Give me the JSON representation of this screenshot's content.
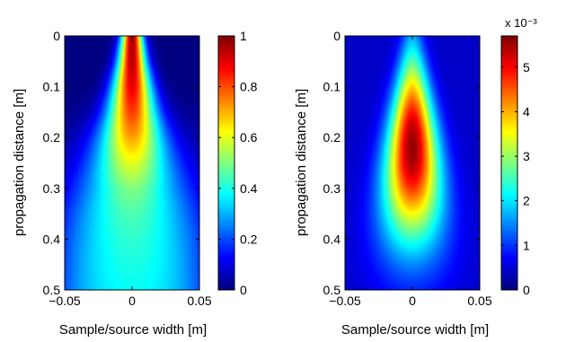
{
  "chart_data": [
    {
      "type": "heatmap",
      "title": "",
      "xlabel": "Sample/source width [m]",
      "ylabel": "propagation distance [m]",
      "xlim": [
        -0.05,
        0.05
      ],
      "ylim": [
        0,
        0.5
      ],
      "y_reversed": true,
      "xticks": [
        -0.05,
        0,
        0.05
      ],
      "xtick_labels": [
        "−0.05",
        "0",
        "0.05"
      ],
      "yticks": [
        0,
        0.1,
        0.2,
        0.3,
        0.4,
        0.5
      ],
      "ytick_labels": [
        "0",
        "0.1",
        "0.2",
        "0.3",
        "0.4",
        "0.5"
      ],
      "colormap": "jet",
      "clim": [
        0,
        1
      ],
      "colorbar_ticks": [
        0,
        0.2,
        0.4,
        0.6,
        0.8,
        1
      ],
      "colorbar_tick_labels": [
        "0",
        "0.2",
        "0.4",
        "0.6",
        "0.8",
        "1"
      ],
      "colorbar_exponent": "",
      "field": {
        "description": "narrow bright beam at x=0 widening with depth",
        "z": [
          0,
          0.05,
          0.1,
          0.15,
          0.2,
          0.25,
          0.3,
          0.35,
          0.4,
          0.45,
          0.5
        ],
        "peak": [
          0.97,
          0.95,
          0.9,
          0.82,
          0.72,
          0.6,
          0.5,
          0.45,
          0.42,
          0.4,
          0.38
        ],
        "halfwidth": [
          0.006,
          0.008,
          0.011,
          0.014,
          0.018,
          0.022,
          0.026,
          0.03,
          0.034,
          0.037,
          0.04
        ],
        "edge_floor": [
          0.0,
          0.0,
          0.0,
          0.02,
          0.05,
          0.08,
          0.12,
          0.17,
          0.2,
          0.22,
          0.24
        ]
      }
    },
    {
      "type": "heatmap",
      "title": "",
      "xlabel": "Sample/source width [m]",
      "ylabel": "propagation distance [m]",
      "xlim": [
        -0.05,
        0.05
      ],
      "ylim": [
        0,
        0.5
      ],
      "y_reversed": true,
      "xticks": [
        -0.05,
        0,
        0.05
      ],
      "xtick_labels": [
        "−0.05",
        "0",
        "0.05"
      ],
      "yticks": [
        0,
        0.1,
        0.2,
        0.3,
        0.4,
        0.5
      ],
      "ytick_labels": [
        "0",
        "0.1",
        "0.2",
        "0.3",
        "0.4",
        "0.5"
      ],
      "colormap": "jet",
      "clim": [
        0,
        0.0057
      ],
      "colorbar_ticks": [
        0,
        1,
        2,
        3,
        4,
        5
      ],
      "colorbar_tick_labels": [
        "0",
        "1",
        "2",
        "3",
        "4",
        "5"
      ],
      "colorbar_exponent": "x 10⁻³",
      "field": {
        "description": "elongated elliptical blob centered at x=0, peak near z=0.22",
        "center_z": 0.22,
        "peak_value": 0.0056,
        "sigma_x_top": 0.006,
        "sigma_x_bottom": 0.022,
        "sigma_z": 0.13,
        "background": 0.0004
      }
    }
  ]
}
